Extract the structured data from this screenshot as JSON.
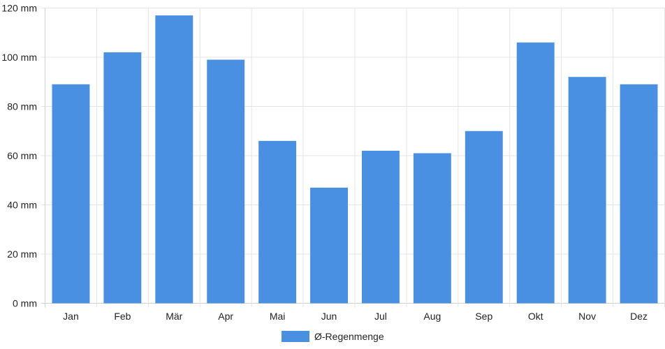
{
  "chart_data": {
    "type": "bar",
    "categories": [
      "Jan",
      "Feb",
      "Mär",
      "Apr",
      "Mai",
      "Jun",
      "Jul",
      "Aug",
      "Sep",
      "Okt",
      "Nov",
      "Dez"
    ],
    "series": [
      {
        "name": "Ø-Regenmenge",
        "values": [
          89,
          102,
          117,
          99,
          66,
          47,
          62,
          61,
          70,
          106,
          92,
          89
        ],
        "color": "#4a90e2"
      }
    ],
    "y_unit": "mm",
    "y_ticks": [
      "0 mm",
      "20 mm",
      "40 mm",
      "60 mm",
      "80 mm",
      "100 mm",
      "120 mm"
    ],
    "ylim": [
      0,
      120
    ],
    "grid": true,
    "legend_position": "bottom-center"
  }
}
